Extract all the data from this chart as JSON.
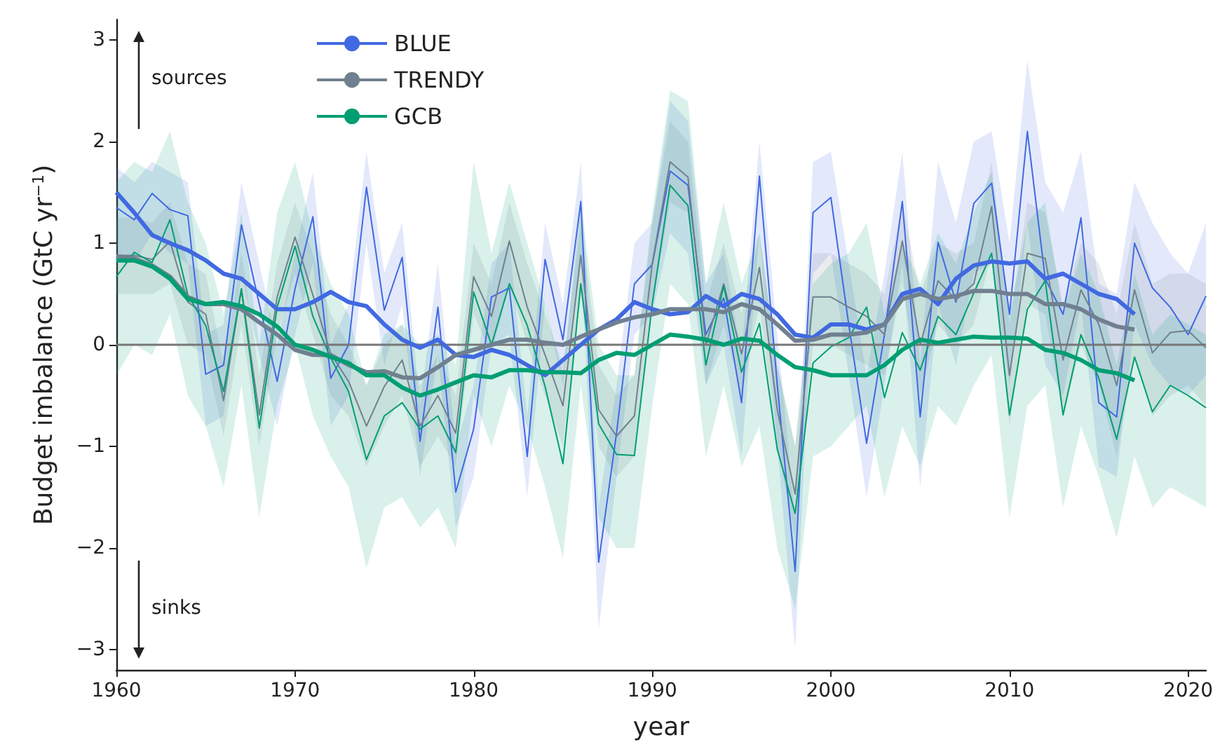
{
  "chart_data": {
    "type": "line",
    "xlabel": "year",
    "ylabel": "Budget imbalance (GtC yr$^{−1}$)",
    "legend": "top left",
    "xlim": [
      1960,
      2021
    ],
    "xticks": [
      1960,
      1970,
      1980,
      1990,
      2000,
      2010,
      2020
    ],
    "ylim": [
      -3.2,
      3.2
    ],
    "yticks": [
      {
        "value": -3,
        "label": "−3"
      },
      {
        "value": -2,
        "label": "−2"
      },
      {
        "value": -1,
        "label": "−1"
      },
      0,
      1,
      2,
      3
    ],
    "x": [
      1960,
      1961,
      1962,
      1963,
      1964,
      1965,
      1966,
      1967,
      1968,
      1969,
      1970,
      1971,
      1972,
      1973,
      1974,
      1975,
      1976,
      1977,
      1978,
      1979,
      1980,
      1981,
      1982,
      1983,
      1984,
      1985,
      1986,
      1987,
      1988,
      1989,
      1990,
      1991,
      1992,
      1993,
      1994,
      1995,
      1996,
      1997,
      1998,
      1999,
      2000,
      2001,
      2002,
      2003,
      2004,
      2005,
      2006,
      2007,
      2008,
      2009,
      2010,
      2011,
      2012,
      2013,
      2014,
      2015,
      2016,
      2017,
      2018,
      2019,
      2020,
      2021
    ],
    "ref_lines": [
      {
        "axis": "y",
        "value": 0,
        "color": "#777777"
      }
    ],
    "annotations": [
      "sources",
      "sinks"
    ],
    "series": [
      {
        "color": "#4169e1",
        "values": [
          1.35,
          1.23,
          1.49,
          1.33,
          1.27,
          -0.29,
          -0.2,
          1.18,
          0.4,
          -0.36,
          0.55,
          1.26,
          -0.33,
          0.0,
          1.55,
          0.34,
          0.86,
          -0.95,
          0.37,
          -1.45,
          -0.83,
          0.47,
          0.56,
          -1.1,
          0.84,
          0.05,
          1.41,
          -2.14,
          -0.87,
          0.6,
          0.79,
          1.71,
          1.57,
          0.1,
          0.46,
          -0.57,
          1.66,
          -0.4,
          -2.23,
          1.3,
          1.45,
          0.2,
          -0.97,
          0.1,
          1.41,
          -0.71,
          1.01,
          0.42,
          1.39,
          1.59,
          0.3,
          2.1,
          0.65,
          0.3,
          1.25,
          -0.57,
          -0.71,
          1.0,
          0.56,
          0.37,
          0.1,
          0.48
        ],
        "upper": [
          1.75,
          1.6,
          1.8,
          1.7,
          1.6,
          0.1,
          0.2,
          1.6,
          0.8,
          0.0,
          0.9,
          1.7,
          0.0,
          0.4,
          1.9,
          0.7,
          1.2,
          -0.6,
          0.8,
          -1.0,
          -0.4,
          0.8,
          1.0,
          -0.7,
          1.2,
          0.4,
          1.8,
          -1.6,
          -0.4,
          1.0,
          1.2,
          2.4,
          2.2,
          0.6,
          0.9,
          -0.1,
          2.0,
          0.1,
          -1.7,
          1.8,
          1.9,
          0.8,
          -0.3,
          0.7,
          1.9,
          -0.2,
          1.8,
          1.2,
          2.0,
          2.1,
          1.0,
          2.8,
          1.6,
          1.3,
          1.9,
          0.6,
          0.5,
          1.6,
          1.2,
          0.9,
          0.7,
          1.2
        ],
        "lower": [
          0.9,
          0.8,
          1.1,
          0.9,
          0.8,
          -0.8,
          -0.7,
          0.7,
          -0.1,
          -0.8,
          0.1,
          0.8,
          -0.8,
          -0.5,
          1.0,
          -0.2,
          0.4,
          -1.3,
          -0.1,
          -1.8,
          -1.3,
          0.0,
          0.1,
          -1.5,
          0.4,
          -0.4,
          0.9,
          -2.8,
          -1.3,
          0.1,
          0.3,
          1.1,
          0.9,
          -0.4,
          0.0,
          -1.1,
          1.1,
          -1.0,
          -3.0,
          0.7,
          0.9,
          -0.3,
          -1.5,
          -0.4,
          0.8,
          -1.4,
          0.4,
          -0.2,
          0.7,
          0.8,
          -0.4,
          1.2,
          -0.2,
          -0.5,
          0.4,
          -1.2,
          -1.3,
          0.2,
          -0.2,
          -0.4,
          -0.5,
          -0.3
        ]
      },
      {
        "color": "#708090",
        "values": [
          0.88,
          0.88,
          0.84,
          1.02,
          0.42,
          0.3,
          -0.55,
          0.55,
          -0.69,
          0.47,
          1.06,
          0.49,
          -0.09,
          -0.36,
          -0.8,
          -0.41,
          -0.15,
          -0.8,
          -0.5,
          -0.87,
          0.67,
          0.28,
          1.02,
          0.37,
          -0.1,
          -0.6,
          0.88,
          -0.64,
          -0.9,
          -0.7,
          0.8,
          1.8,
          1.65,
          0.0,
          0.6,
          -0.09,
          0.76,
          -0.64,
          -1.47,
          0.47,
          0.47,
          0.37,
          0.28,
          0.1,
          1.02,
          0.0,
          0.63,
          0.44,
          0.6,
          1.36,
          -0.3,
          0.9,
          0.85,
          -0.15,
          0.54,
          0.2,
          -0.4,
          0.54,
          -0.08,
          0.12,
          0.14,
          -0.03
        ],
        "upper": [
          1.25,
          1.25,
          1.2,
          1.4,
          0.8,
          0.7,
          -0.2,
          0.9,
          -0.3,
          0.8,
          1.4,
          0.9,
          0.3,
          0.0,
          -0.4,
          0.0,
          0.2,
          -0.4,
          -0.1,
          -0.5,
          1.0,
          0.6,
          1.4,
          0.8,
          0.3,
          -0.2,
          1.2,
          -0.2,
          -0.5,
          -0.3,
          1.2,
          2.2,
          2.0,
          0.4,
          1.0,
          0.3,
          1.1,
          -0.2,
          -1.0,
          0.9,
          0.9,
          0.8,
          0.7,
          0.5,
          1.4,
          0.5,
          1.0,
          0.9,
          1.0,
          1.8,
          0.2,
          1.4,
          1.3,
          0.4,
          1.0,
          0.8,
          0.3,
          1.2,
          0.6,
          0.7,
          0.7,
          0.6
        ],
        "lower": [
          0.5,
          0.5,
          0.5,
          0.6,
          0.0,
          -0.1,
          -0.9,
          0.2,
          -1.0,
          0.1,
          0.7,
          0.1,
          -0.5,
          -0.7,
          -1.2,
          -0.8,
          -0.5,
          -1.2,
          -0.9,
          -1.2,
          0.3,
          -0.1,
          0.6,
          0.0,
          -0.5,
          -1.0,
          0.5,
          -1.0,
          -1.3,
          -1.1,
          0.4,
          1.4,
          1.3,
          -0.4,
          0.2,
          -0.5,
          0.4,
          -1.0,
          -1.9,
          0.0,
          0.0,
          -0.1,
          -0.2,
          -0.3,
          0.6,
          -0.5,
          0.2,
          0.0,
          0.2,
          0.9,
          -0.8,
          0.4,
          0.3,
          -0.7,
          0.0,
          -0.4,
          -1.1,
          -0.1,
          -0.7,
          -0.5,
          -0.4,
          -0.6
        ]
      },
      {
        "color": "#009e73",
        "values": [
          0.67,
          0.91,
          0.81,
          1.23,
          0.49,
          0.19,
          -0.46,
          0.55,
          -0.82,
          0.37,
          0.97,
          0.28,
          -0.13,
          -0.46,
          -1.13,
          -0.7,
          -0.57,
          -0.83,
          -0.7,
          -1.06,
          0.52,
          0.0,
          0.6,
          0.19,
          -0.41,
          -1.17,
          0.6,
          -0.78,
          -1.08,
          -1.09,
          0.4,
          1.57,
          1.37,
          -0.2,
          0.58,
          -0.27,
          0.21,
          -1.03,
          -1.66,
          -0.18,
          -0.02,
          0.07,
          0.37,
          -0.52,
          0.12,
          -0.25,
          0.28,
          0.1,
          0.51,
          0.9,
          -0.69,
          0.35,
          0.63,
          -0.69,
          0.1,
          -0.33,
          -0.93,
          -0.12,
          -0.66,
          -0.4,
          -0.5,
          -0.62
        ],
        "upper": [
          1.6,
          1.8,
          1.7,
          2.1,
          1.4,
          1.0,
          0.3,
          1.3,
          0.0,
          1.3,
          1.8,
          1.1,
          0.6,
          0.3,
          -0.4,
          0.1,
          0.2,
          0.0,
          0.1,
          -0.2,
          1.8,
          0.9,
          1.6,
          1.0,
          0.4,
          -0.3,
          1.4,
          0.0,
          -0.3,
          -0.3,
          1.3,
          2.5,
          2.4,
          0.6,
          1.4,
          0.6,
          1.1,
          -0.2,
          -1.0,
          0.6,
          0.8,
          0.9,
          1.2,
          0.3,
          1.0,
          0.6,
          1.1,
          0.8,
          1.3,
          1.7,
          0.3,
          1.2,
          1.4,
          0.3,
          0.9,
          0.5,
          -0.2,
          0.7,
          0.1,
          0.3,
          0.2,
          0.1
        ],
        "lower": [
          -0.3,
          0.0,
          -0.1,
          0.3,
          -0.5,
          -0.8,
          -1.4,
          -0.4,
          -1.7,
          -0.6,
          0.0,
          -0.7,
          -1.1,
          -1.4,
          -2.2,
          -1.6,
          -1.5,
          -1.8,
          -1.6,
          -2.0,
          -0.5,
          -1.0,
          -0.4,
          -0.8,
          -1.4,
          -2.1,
          -0.4,
          -1.7,
          -2.0,
          -2.0,
          -0.6,
          0.6,
          0.4,
          -1.1,
          -0.4,
          -1.2,
          -0.8,
          -2.0,
          -2.6,
          -1.1,
          -1.0,
          -0.8,
          -0.6,
          -1.5,
          -0.8,
          -1.2,
          -0.6,
          -0.8,
          -0.4,
          -0.1,
          -1.7,
          -0.6,
          -0.4,
          -1.6,
          -0.8,
          -1.3,
          -1.9,
          -1.1,
          -1.6,
          -1.4,
          -1.5,
          -1.6
        ]
      },
      {
        "name": "BLUE",
        "color": "#4169e1",
        "x": [
          1960,
          1961,
          1962,
          1963,
          1964,
          1965,
          1966,
          1967,
          1968,
          1969,
          1970,
          1971,
          1972,
          1973,
          1974,
          1975,
          1976,
          1977,
          1978,
          1979,
          1980,
          1981,
          1982,
          1983,
          1984,
          1985,
          1986,
          1987,
          1988,
          1989,
          1990,
          1991,
          1992,
          1993,
          1994,
          1995,
          1996,
          1997,
          1998,
          1999,
          2000,
          2001,
          2002,
          2003,
          2004,
          2005,
          2006,
          2007,
          2008,
          2009,
          2010,
          2011,
          2012,
          2013,
          2014,
          2015,
          2016,
          2017
        ],
        "values": [
          1.5,
          1.3,
          1.08,
          1.0,
          0.93,
          0.83,
          0.7,
          0.65,
          0.5,
          0.35,
          0.35,
          0.42,
          0.52,
          0.42,
          0.38,
          0.2,
          0.05,
          -0.03,
          0.05,
          -0.1,
          -0.12,
          -0.05,
          -0.1,
          -0.2,
          -0.3,
          -0.15,
          0.0,
          0.15,
          0.25,
          0.42,
          0.35,
          0.3,
          0.32,
          0.48,
          0.38,
          0.5,
          0.45,
          0.3,
          0.1,
          0.07,
          0.2,
          0.2,
          0.15,
          0.2,
          0.5,
          0.55,
          0.4,
          0.65,
          0.78,
          0.82,
          0.8,
          0.82,
          0.65,
          0.7,
          0.6,
          0.5,
          0.45,
          0.3
        ]
      },
      {
        "name": "TRENDY",
        "color": "#708090",
        "x": [
          1960,
          1961,
          1962,
          1963,
          1964,
          1965,
          1966,
          1967,
          1968,
          1969,
          1970,
          1971,
          1972,
          1973,
          1974,
          1975,
          1976,
          1977,
          1978,
          1979,
          1980,
          1981,
          1982,
          1983,
          1984,
          1985,
          1986,
          1987,
          1988,
          1989,
          1990,
          1991,
          1992,
          1993,
          1994,
          1995,
          1996,
          1997,
          1998,
          1999,
          2000,
          2001,
          2002,
          2003,
          2004,
          2005,
          2006,
          2007,
          2008,
          2009,
          2010,
          2011,
          2012,
          2013,
          2014,
          2015,
          2016,
          2017
        ],
        "values": [
          0.87,
          0.85,
          0.78,
          0.67,
          0.47,
          0.4,
          0.4,
          0.35,
          0.22,
          0.1,
          -0.05,
          -0.1,
          -0.1,
          -0.2,
          -0.27,
          -0.26,
          -0.32,
          -0.33,
          -0.22,
          -0.1,
          -0.05,
          0.0,
          0.05,
          0.05,
          0.02,
          0.0,
          0.08,
          0.15,
          0.22,
          0.27,
          0.3,
          0.35,
          0.35,
          0.35,
          0.32,
          0.4,
          0.35,
          0.2,
          0.04,
          0.05,
          0.1,
          0.1,
          0.12,
          0.2,
          0.45,
          0.5,
          0.45,
          0.48,
          0.53,
          0.53,
          0.5,
          0.5,
          0.4,
          0.4,
          0.35,
          0.25,
          0.18,
          0.15
        ]
      },
      {
        "name": "GCB",
        "color": "#009e73",
        "x": [
          1960,
          1961,
          1962,
          1963,
          1964,
          1965,
          1966,
          1967,
          1968,
          1969,
          1970,
          1971,
          1972,
          1973,
          1974,
          1975,
          1976,
          1977,
          1978,
          1979,
          1980,
          1981,
          1982,
          1983,
          1984,
          1985,
          1986,
          1987,
          1988,
          1989,
          1990,
          1991,
          1992,
          1993,
          1994,
          1995,
          1996,
          1997,
          1998,
          1999,
          2000,
          2001,
          2002,
          2003,
          2004,
          2005,
          2006,
          2007,
          2008,
          2009,
          2010,
          2011,
          2012,
          2013,
          2014,
          2015,
          2016,
          2017
        ],
        "values": [
          0.83,
          0.83,
          0.77,
          0.65,
          0.45,
          0.4,
          0.42,
          0.38,
          0.3,
          0.18,
          0.0,
          -0.05,
          -0.12,
          -0.18,
          -0.3,
          -0.3,
          -0.42,
          -0.5,
          -0.44,
          -0.37,
          -0.3,
          -0.32,
          -0.25,
          -0.25,
          -0.27,
          -0.27,
          -0.28,
          -0.15,
          -0.08,
          -0.1,
          0.0,
          0.1,
          0.08,
          0.05,
          0.0,
          0.06,
          0.04,
          -0.1,
          -0.22,
          -0.25,
          -0.3,
          -0.3,
          -0.3,
          -0.2,
          -0.05,
          0.05,
          0.02,
          0.05,
          0.08,
          0.07,
          0.07,
          0.06,
          -0.05,
          -0.08,
          -0.15,
          -0.25,
          -0.28,
          -0.35
        ]
      }
    ]
  }
}
